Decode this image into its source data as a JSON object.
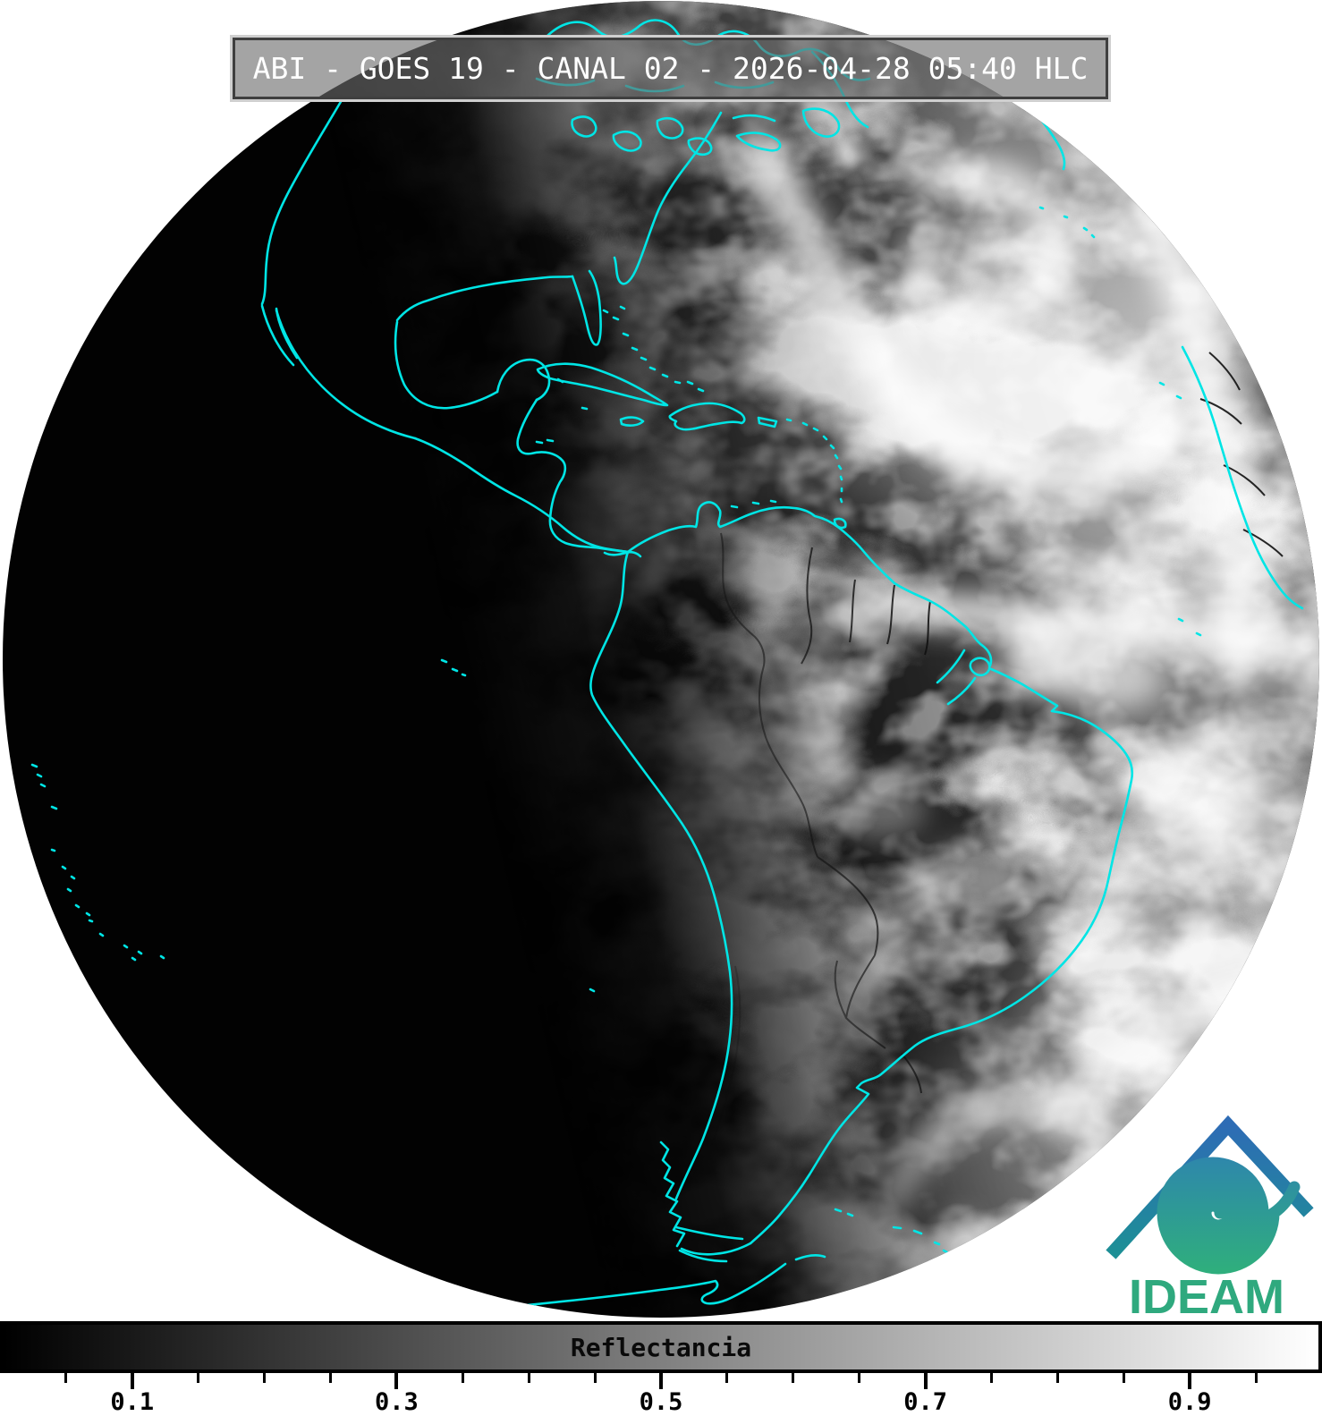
{
  "header": {
    "title": "ABI - GOES 19 - CANAL 02 - 2026-04-28 05:40 HLC"
  },
  "map": {
    "coastline_color": "#00e5e5",
    "border_color": "#101010",
    "night_color": "#020202",
    "background_color": "#ffffff"
  },
  "logo": {
    "text": "IDEAM",
    "text_color": "#2fa97e",
    "roof_top_color": "#2e6cb5",
    "roof_bottom_color": "#1d8f96",
    "spiral_outer_color": "#2e86ad",
    "spiral_inner_color": "#2fae7d"
  },
  "colorbar": {
    "label": "Reflectancia",
    "label_color": "#0a0a0a",
    "min": 0,
    "max": 1,
    "gradient_start": "#000000",
    "gradient_end": "#ffffff",
    "major_ticks": [
      0.1,
      0.3,
      0.5,
      0.7,
      0.9
    ],
    "major_tick_labels": [
      "0.1",
      "0.3",
      "0.5",
      "0.7",
      "0.9"
    ],
    "minor_ticks": [
      0.05,
      0.15,
      0.2,
      0.25,
      0.35,
      0.4,
      0.45,
      0.55,
      0.6,
      0.65,
      0.75,
      0.8,
      0.85,
      0.95
    ]
  }
}
